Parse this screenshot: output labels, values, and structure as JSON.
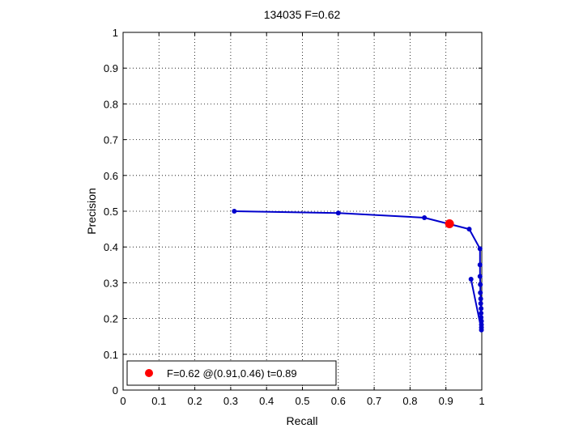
{
  "chart_data": {
    "type": "line",
    "title": "134035 F=0.62",
    "xlabel": "Recall",
    "ylabel": "Precision",
    "xlim": [
      0,
      1
    ],
    "ylim": [
      0,
      1
    ],
    "xticks": [
      "0",
      "0.1",
      "0.2",
      "0.3",
      "0.4",
      "0.5",
      "0.6",
      "0.7",
      "0.8",
      "0.9",
      "1"
    ],
    "yticks": [
      "0",
      "0.1",
      "0.2",
      "0.3",
      "0.4",
      "0.5",
      "0.6",
      "0.7",
      "0.8",
      "0.9",
      "1"
    ],
    "grid": true,
    "series": [
      {
        "color": "#0000cc",
        "x": [
          0.31,
          0.6,
          0.84,
          0.965,
          0.995,
          0.995,
          0.995,
          0.996,
          0.996,
          0.997,
          0.997,
          0.998,
          0.998,
          0.998,
          0.999,
          0.999,
          0.999,
          0.999,
          0.97
        ],
        "y": [
          0.5,
          0.495,
          0.482,
          0.45,
          0.395,
          0.35,
          0.318,
          0.295,
          0.272,
          0.255,
          0.242,
          0.228,
          0.215,
          0.203,
          0.193,
          0.183,
          0.175,
          0.168,
          0.31
        ]
      }
    ],
    "best_point": {
      "x": 0.91,
      "y": 0.465,
      "color": "#ff0000"
    },
    "legend": {
      "position": "bottom-left",
      "label": "F=0.62 @(0.91,0.46) t=0.89"
    }
  }
}
